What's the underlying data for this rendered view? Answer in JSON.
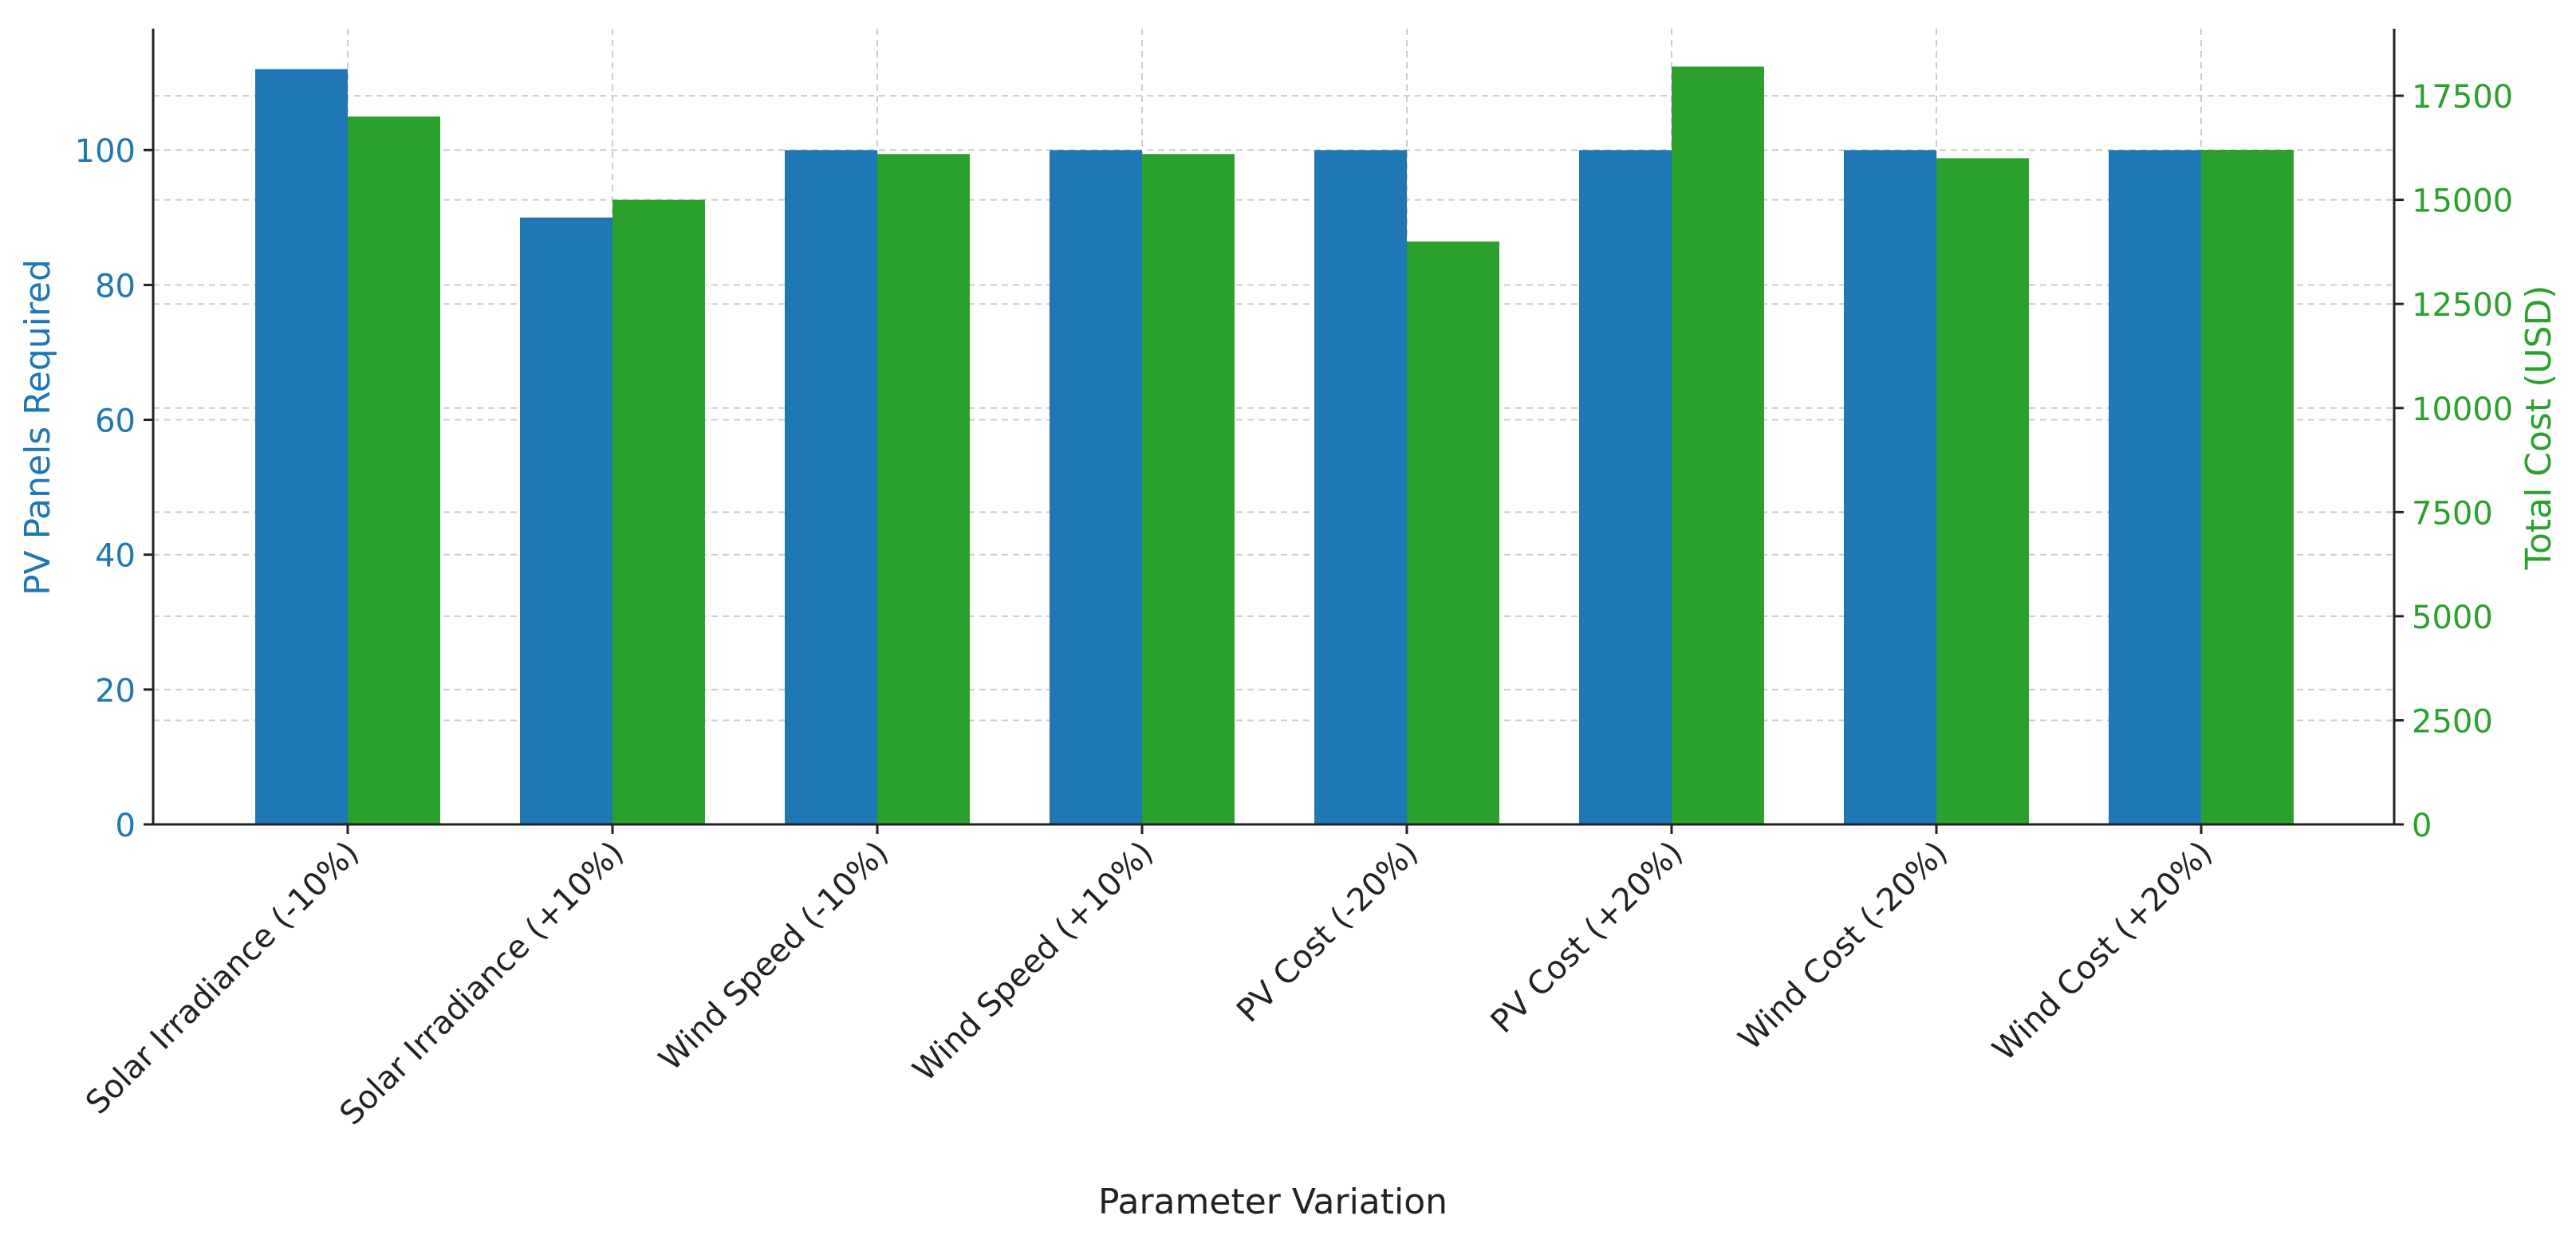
{
  "chart_data": {
    "type": "bar",
    "title": "",
    "xlabel": "Parameter Variation",
    "categories": [
      "Solar Irradiance (-10%)",
      "Solar Irradiance (+10%)",
      "Wind Speed (-10%)",
      "Wind Speed (+10%)",
      "PV Cost (-20%)",
      "PV Cost (+20%)",
      "Wind Cost (-20%)",
      "Wind Cost (+20%)"
    ],
    "series": [
      {
        "name": "PV Panels Required",
        "axis": "left",
        "color": "#1f77b4",
        "values": [
          112,
          90,
          100,
          100,
          100,
          100,
          100,
          100
        ]
      },
      {
        "name": "Total Cost (USD)",
        "axis": "right",
        "color": "#2ca02c",
        "values": [
          17000,
          15000,
          16100,
          16100,
          14000,
          18200,
          16000,
          16200
        ]
      }
    ],
    "y_left": {
      "label": "PV Panels Required",
      "color": "#1f77b4",
      "ylim": [
        0,
        118
      ],
      "ticks": [
        0,
        20,
        40,
        60,
        80,
        100
      ]
    },
    "y_right": {
      "label": "Total Cost (USD)",
      "color": "#2ca02c",
      "ylim": [
        0,
        19110
      ],
      "ticks": [
        0,
        2500,
        5000,
        7500,
        10000,
        12500,
        15000,
        17500
      ]
    },
    "grid": true
  }
}
